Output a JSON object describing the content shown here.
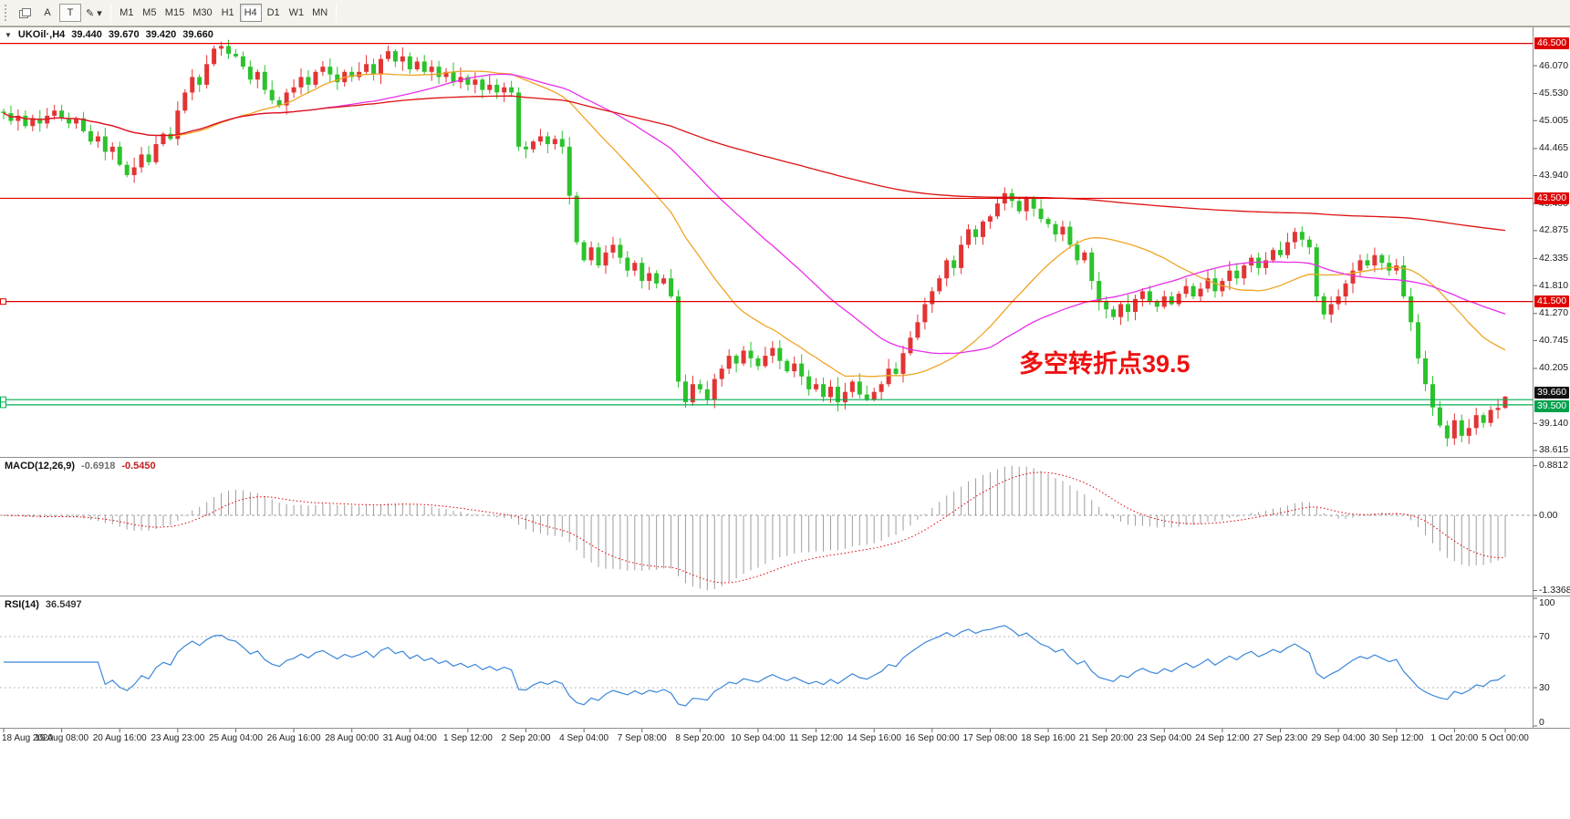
{
  "toolbar": {
    "tools": [
      {
        "name": "charts-stack",
        "icon": "stack"
      },
      {
        "name": "arrow-tool",
        "label": "A"
      },
      {
        "name": "text-tool",
        "label": "T",
        "boxed": true
      },
      {
        "name": "draw-tool",
        "label": "✎",
        "dropdown": "▾"
      }
    ],
    "timeframes": [
      "M1",
      "M5",
      "M15",
      "M30",
      "H1",
      "H4",
      "D1",
      "W1",
      "MN"
    ],
    "active_timeframe": "H4"
  },
  "chart": {
    "expander_glyph": "▼",
    "title": "UKOil·,H4",
    "quote_open": "39.440",
    "quote_high": "39.670",
    "quote_low": "39.420",
    "quote_close": "39.660",
    "annotation": "多空转折点39.5",
    "annotation_color": "#ee1111",
    "price_axis": [
      46.07,
      45.53,
      45.005,
      44.465,
      43.94,
      43.4,
      42.875,
      42.335,
      41.81,
      41.27,
      40.745,
      40.205,
      39.14,
      38.615
    ],
    "price_tags": [
      {
        "text": "46.500",
        "value": 46.5,
        "bg": "#e00000",
        "dy": 0
      },
      {
        "text": "43.500",
        "value": 43.5,
        "bg": "#e00000",
        "dy": 0
      },
      {
        "text": "41.500",
        "value": 41.5,
        "bg": "#e00000",
        "dy": 0
      },
      {
        "text": "39.660",
        "value": 39.66,
        "bg": "#111111",
        "dy": -4
      },
      {
        "text": "39.500",
        "value": 39.5,
        "bg": "#00a14b",
        "dy": 2
      }
    ],
    "hlines": [
      {
        "value": 46.5,
        "color": "#e00000"
      },
      {
        "value": 43.5,
        "color": "#e00000"
      },
      {
        "value": 41.5,
        "color": "#e00000",
        "marker": true
      },
      {
        "value": 39.6,
        "color": "#00b050",
        "marker": true
      },
      {
        "value": 39.5,
        "color": "#00b050",
        "marker": true
      }
    ]
  },
  "chart_data": {
    "type": "candlestick",
    "symbol": "UKOil",
    "timeframe": "H4",
    "up_color": "#e23434",
    "down_color": "#2cc22c",
    "bars_per_label": 8,
    "x_labels": [
      "18 Aug 2020",
      "19 Aug 08:00",
      "20 Aug 16:00",
      "23 Aug 23:00",
      "25 Aug 04:00",
      "26 Aug 16:00",
      "28 Aug 00:00",
      "31 Aug 04:00",
      "1 Sep 12:00",
      "2 Sep 20:00",
      "4 Sep 04:00",
      "7 Sep 08:00",
      "8 Sep 20:00",
      "10 Sep 04:00",
      "11 Sep 12:00",
      "14 Sep 16:00",
      "16 Sep 00:00",
      "17 Sep 08:00",
      "18 Sep 16:00",
      "21 Sep 20:00",
      "23 Sep 04:00",
      "24 Sep 12:00",
      "27 Sep 23:00",
      "29 Sep 04:00",
      "30 Sep 12:00",
      "1 Oct 20:00",
      "5 Oct 00:00"
    ],
    "ylim": [
      38.49,
      46.81
    ],
    "closes": [
      45.15,
      45.0,
      45.1,
      44.9,
      45.05,
      44.95,
      45.1,
      45.2,
      45.05,
      44.95,
      45.05,
      44.8,
      44.6,
      44.7,
      44.4,
      44.5,
      44.15,
      43.95,
      44.1,
      44.35,
      44.2,
      44.55,
      44.75,
      44.65,
      45.2,
      45.55,
      45.85,
      45.7,
      46.1,
      46.4,
      46.45,
      46.3,
      46.25,
      46.05,
      45.8,
      45.95,
      45.6,
      45.4,
      45.3,
      45.55,
      45.65,
      45.85,
      45.7,
      45.95,
      46.05,
      45.9,
      45.75,
      45.95,
      45.85,
      45.95,
      46.1,
      45.9,
      46.2,
      46.35,
      46.15,
      46.25,
      46.0,
      46.15,
      45.95,
      46.05,
      45.85,
      45.95,
      45.75,
      45.85,
      45.7,
      45.8,
      45.6,
      45.7,
      45.55,
      45.65,
      45.55,
      44.5,
      44.45,
      44.6,
      44.7,
      44.55,
      44.65,
      44.5,
      43.55,
      42.65,
      42.3,
      42.55,
      42.2,
      42.45,
      42.6,
      42.35,
      42.1,
      42.25,
      41.9,
      42.05,
      41.85,
      41.95,
      41.6,
      39.95,
      39.55,
      39.9,
      39.8,
      39.6,
      40.0,
      40.2,
      40.45,
      40.3,
      40.55,
      40.4,
      40.25,
      40.45,
      40.6,
      40.35,
      40.15,
      40.3,
      40.05,
      39.8,
      39.9,
      39.65,
      39.85,
      39.55,
      39.75,
      39.95,
      39.7,
      39.6,
      39.75,
      39.9,
      40.2,
      40.1,
      40.5,
      40.8,
      41.1,
      41.45,
      41.7,
      41.95,
      42.3,
      42.15,
      42.6,
      42.9,
      42.75,
      43.05,
      43.15,
      43.4,
      43.6,
      43.45,
      43.25,
      43.5,
      43.3,
      43.1,
      43.0,
      42.8,
      42.95,
      42.6,
      42.3,
      42.45,
      41.9,
      41.5,
      41.35,
      41.2,
      41.45,
      41.3,
      41.55,
      41.7,
      41.5,
      41.4,
      41.6,
      41.45,
      41.65,
      41.8,
      41.6,
      41.75,
      41.95,
      41.7,
      41.9,
      42.1,
      41.95,
      42.2,
      42.35,
      42.15,
      42.3,
      42.5,
      42.4,
      42.65,
      42.85,
      42.7,
      42.55,
      41.6,
      41.25,
      41.45,
      41.6,
      41.85,
      42.1,
      42.3,
      42.2,
      42.4,
      42.25,
      42.1,
      42.2,
      41.6,
      41.1,
      40.4,
      39.9,
      39.45,
      39.1,
      38.85,
      39.2,
      38.9,
      39.05,
      39.3,
      39.15,
      39.4,
      39.44,
      39.66
    ],
    "last_candle": {
      "open": 39.44,
      "high": 39.67,
      "low": 39.42,
      "close": 39.66
    },
    "moving_averages": [
      {
        "name": "fast-ma",
        "period": 24,
        "color": "#efa426"
      },
      {
        "name": "medium-ma",
        "period": 44,
        "color": "#e92ee9"
      },
      {
        "name": "slow-ma",
        "period": 400,
        "color": "#dd1111"
      }
    ],
    "macd": {
      "label": "MACD(12,26,9)",
      "fast": 12,
      "slow": 26,
      "signal": 9,
      "value_main": "-0.6918",
      "value_signal": "-0.5450",
      "scale_top": 0.8812,
      "scale_bottom": -1.3368,
      "axis_labels": [
        "0.8812",
        "0.00",
        "-1.3368"
      ],
      "histogram_color": "#9e9e9e",
      "signal_color": "#dd0000"
    },
    "rsi": {
      "label": "RSI(14)",
      "period": 14,
      "value": "36.5497",
      "levels": [
        70,
        30
      ],
      "range": [
        0,
        100
      ],
      "axis_labels": [
        "100",
        "70",
        "30",
        "0"
      ],
      "color": "#3b87d9"
    }
  }
}
